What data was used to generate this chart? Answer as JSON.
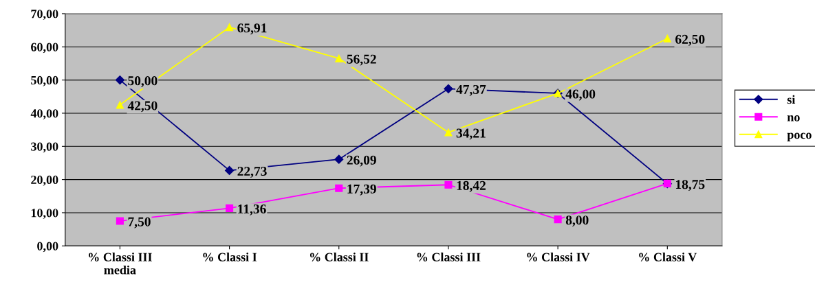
{
  "chart_data": {
    "type": "line",
    "categories": [
      "% Classi III\nmedia",
      "% Classi I",
      "% Classi II",
      "% Classi III",
      "% Classi IV",
      "% Classi V"
    ],
    "series": [
      {
        "name": "si",
        "color": "#000080",
        "marker": "diamond",
        "values": [
          50.0,
          22.73,
          26.09,
          47.37,
          46.0,
          18.75
        ],
        "value_labels": [
          "50,00",
          "22,73",
          "26,09",
          "47,37",
          "46,00",
          "18,75"
        ]
      },
      {
        "name": "no",
        "color": "#ff00ff",
        "marker": "square",
        "values": [
          7.5,
          11.36,
          17.39,
          18.42,
          8.0,
          18.8
        ],
        "value_labels": [
          "7,50",
          "11,36",
          "17,39",
          "18,42",
          "8,00",
          null
        ]
      },
      {
        "name": "poco",
        "color": "#ffff00",
        "marker": "triangle",
        "values": [
          42.5,
          65.91,
          56.52,
          34.21,
          46.0,
          62.5
        ],
        "value_labels": [
          "42,50",
          "65,91",
          "56,52",
          "34,21",
          null,
          "62,50"
        ]
      }
    ],
    "ylim": [
      0,
      70
    ],
    "yticks": [
      {
        "value": 0,
        "label": "0,00"
      },
      {
        "value": 10,
        "label": "10,00"
      },
      {
        "value": 20,
        "label": "20,00"
      },
      {
        "value": 30,
        "label": "30,00"
      },
      {
        "value": 40,
        "label": "40,00"
      },
      {
        "value": 50,
        "label": "50,00"
      },
      {
        "value": 60,
        "label": "60,00"
      },
      {
        "value": 70,
        "label": "70,00"
      }
    ],
    "grid": "y",
    "legend": "right",
    "line_style": "solid"
  }
}
